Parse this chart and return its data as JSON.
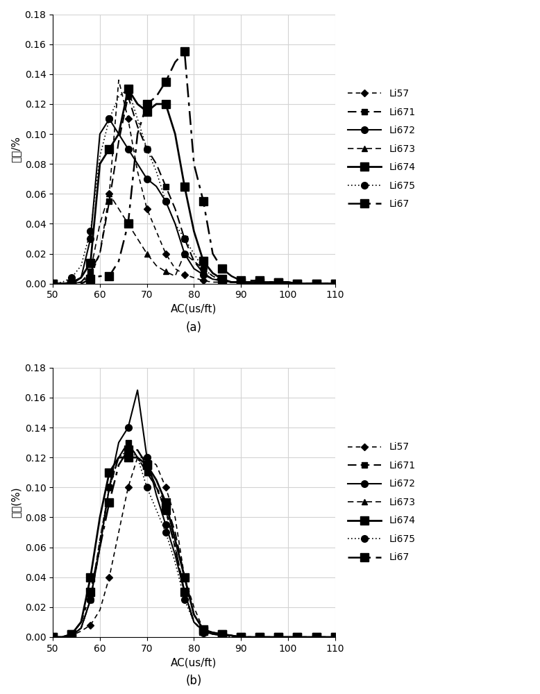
{
  "panel_a": {
    "xlabel": "AC(us/ft)",
    "ylabel_a": "频率/%",
    "ylabel_b": "频率(%)",
    "label": "(a)",
    "xlim": [
      50,
      110
    ],
    "ylim": [
      0,
      0.18
    ],
    "yticks": [
      0,
      0.02,
      0.04,
      0.06,
      0.08,
      0.1,
      0.12,
      0.14,
      0.16,
      0.18
    ],
    "xticks": [
      50,
      60,
      70,
      80,
      90,
      100,
      110
    ],
    "series": {
      "Li57": {
        "x": [
          50,
          52,
          54,
          56,
          58,
          60,
          62,
          64,
          66,
          68,
          70,
          72,
          74,
          76,
          78,
          80,
          82,
          84,
          86,
          88,
          90,
          92,
          94,
          96,
          98,
          100,
          102,
          104,
          106,
          108,
          110
        ],
        "y": [
          0,
          0,
          0,
          0.001,
          0.005,
          0.02,
          0.06,
          0.136,
          0.11,
          0.075,
          0.05,
          0.035,
          0.02,
          0.01,
          0.006,
          0.004,
          0.002,
          0.001,
          0.001,
          0.001,
          0,
          0,
          0,
          0,
          0,
          0,
          0,
          0,
          0,
          0,
          0
        ]
      },
      "Li671": {
        "x": [
          50,
          52,
          54,
          56,
          58,
          60,
          62,
          64,
          66,
          68,
          70,
          72,
          74,
          76,
          78,
          80,
          82,
          84,
          86,
          88,
          90,
          92,
          94,
          96,
          98,
          100,
          102,
          104,
          106,
          108,
          110
        ],
        "y": [
          0,
          0,
          0,
          0.001,
          0.008,
          0.02,
          0.055,
          0.095,
          0.125,
          0.105,
          0.09,
          0.08,
          0.065,
          0.05,
          0.03,
          0.015,
          0.007,
          0.003,
          0.002,
          0.001,
          0.001,
          0.001,
          0,
          0,
          0,
          0,
          0,
          0,
          0,
          0,
          0
        ]
      },
      "Li672": {
        "x": [
          50,
          52,
          54,
          56,
          58,
          60,
          62,
          64,
          66,
          68,
          70,
          72,
          74,
          76,
          78,
          80,
          82,
          84,
          86,
          88,
          90,
          92,
          94,
          96,
          98,
          100,
          102,
          104,
          106,
          108,
          110
        ],
        "y": [
          0,
          0,
          0.001,
          0.004,
          0.03,
          0.1,
          0.11,
          0.1,
          0.09,
          0.08,
          0.07,
          0.065,
          0.055,
          0.04,
          0.02,
          0.01,
          0.006,
          0.003,
          0.002,
          0.001,
          0.001,
          0,
          0,
          0,
          0,
          0,
          0,
          0,
          0,
          0,
          0
        ]
      },
      "Li673": {
        "x": [
          50,
          52,
          54,
          56,
          58,
          60,
          62,
          64,
          66,
          68,
          70,
          72,
          74,
          76,
          78,
          80,
          82,
          84,
          86,
          88,
          90,
          92,
          94,
          96,
          98,
          100,
          102,
          104,
          106,
          108,
          110
        ],
        "y": [
          0,
          0,
          0,
          0.001,
          0.008,
          0.04,
          0.06,
          0.05,
          0.04,
          0.03,
          0.02,
          0.012,
          0.008,
          0.005,
          0.02,
          0.015,
          0.01,
          0.005,
          0.002,
          0.001,
          0.001,
          0,
          0,
          0,
          0,
          0,
          0,
          0,
          0,
          0,
          0
        ]
      },
      "Li674": {
        "x": [
          50,
          52,
          54,
          56,
          58,
          60,
          62,
          64,
          66,
          68,
          70,
          72,
          74,
          76,
          78,
          80,
          82,
          84,
          86,
          88,
          90,
          92,
          94,
          96,
          98,
          100,
          102,
          104,
          106,
          108,
          110
        ],
        "y": [
          0,
          0,
          0,
          0.004,
          0.014,
          0.08,
          0.09,
          0.1,
          0.13,
          0.12,
          0.115,
          0.12,
          0.12,
          0.1,
          0.065,
          0.035,
          0.015,
          0.007,
          0.003,
          0.001,
          0.001,
          0.001,
          0.001,
          0.001,
          0.001,
          0.001,
          0,
          0,
          0,
          0,
          0
        ]
      },
      "Li675": {
        "x": [
          50,
          52,
          54,
          56,
          58,
          60,
          62,
          64,
          66,
          68,
          70,
          72,
          74,
          76,
          78,
          80,
          82,
          84,
          86,
          88,
          90,
          92,
          94,
          96,
          98,
          100,
          102,
          104,
          106,
          108,
          110
        ],
        "y": [
          0,
          0.001,
          0.004,
          0.012,
          0.035,
          0.085,
          0.11,
          0.125,
          0.13,
          0.11,
          0.09,
          0.075,
          0.055,
          0.04,
          0.03,
          0.02,
          0.01,
          0.005,
          0.002,
          0.001,
          0,
          0,
          0,
          0,
          0,
          0,
          0,
          0,
          0,
          0,
          0
        ]
      },
      "Li67": {
        "x": [
          50,
          52,
          54,
          56,
          58,
          60,
          62,
          64,
          66,
          68,
          70,
          72,
          74,
          76,
          78,
          80,
          82,
          84,
          86,
          88,
          90,
          92,
          94,
          96,
          98,
          100,
          102,
          104,
          106,
          108,
          110
        ],
        "y": [
          0,
          0,
          0,
          0,
          0.003,
          0.005,
          0.005,
          0.015,
          0.04,
          0.1,
          0.12,
          0.125,
          0.135,
          0.148,
          0.155,
          0.08,
          0.055,
          0.02,
          0.01,
          0.005,
          0.002,
          0.002,
          0.002,
          0.001,
          0.001,
          0.001,
          0,
          0,
          0,
          0,
          0
        ]
      }
    }
  },
  "panel_b": {
    "xlabel": "AC(us/ft)",
    "label": "(b)",
    "xlim": [
      50,
      110
    ],
    "ylim": [
      0,
      0.18
    ],
    "yticks": [
      0,
      0.02,
      0.04,
      0.06,
      0.08,
      0.1,
      0.12,
      0.14,
      0.16,
      0.18
    ],
    "xticks": [
      50,
      60,
      70,
      80,
      90,
      100,
      110
    ],
    "series": {
      "Li57": {
        "x": [
          50,
          52,
          54,
          56,
          58,
          60,
          62,
          64,
          66,
          68,
          70,
          72,
          74,
          76,
          78,
          80,
          82,
          84,
          86,
          88,
          90,
          92,
          94,
          96,
          98,
          100,
          102,
          104,
          106,
          108,
          110
        ],
        "y": [
          0,
          0,
          0.001,
          0.004,
          0.008,
          0.018,
          0.04,
          0.07,
          0.1,
          0.12,
          0.12,
          0.115,
          0.1,
          0.08,
          0.04,
          0.02,
          0.005,
          0.002,
          0.002,
          0.001,
          0,
          0,
          0,
          0,
          0,
          0,
          0,
          0,
          0,
          0,
          0
        ]
      },
      "Li671": {
        "x": [
          50,
          52,
          54,
          56,
          58,
          60,
          62,
          64,
          66,
          68,
          70,
          72,
          74,
          76,
          78,
          80,
          82,
          84,
          86,
          88,
          90,
          92,
          94,
          96,
          98,
          100,
          102,
          104,
          106,
          108,
          110
        ],
        "y": [
          0,
          0,
          0.001,
          0.006,
          0.025,
          0.06,
          0.1,
          0.12,
          0.13,
          0.12,
          0.11,
          0.1,
          0.09,
          0.07,
          0.04,
          0.015,
          0.005,
          0.003,
          0.002,
          0.001,
          0,
          0,
          0,
          0,
          0,
          0,
          0,
          0,
          0,
          0,
          0
        ]
      },
      "Li672": {
        "x": [
          50,
          52,
          54,
          56,
          58,
          60,
          62,
          64,
          66,
          68,
          70,
          72,
          74,
          76,
          78,
          80,
          82,
          84,
          86,
          88,
          90,
          92,
          94,
          96,
          98,
          100,
          102,
          104,
          106,
          108,
          110
        ],
        "y": [
          0,
          0,
          0.001,
          0.006,
          0.025,
          0.06,
          0.1,
          0.13,
          0.14,
          0.165,
          0.12,
          0.095,
          0.075,
          0.055,
          0.03,
          0.01,
          0.004,
          0.002,
          0.001,
          0.001,
          0,
          0,
          0,
          0,
          0,
          0,
          0,
          0,
          0,
          0,
          0
        ]
      },
      "Li673": {
        "x": [
          50,
          52,
          54,
          56,
          58,
          60,
          62,
          64,
          66,
          68,
          70,
          72,
          74,
          76,
          78,
          80,
          82,
          84,
          86,
          88,
          90,
          92,
          94,
          96,
          98,
          100,
          102,
          104,
          106,
          108,
          110
        ],
        "y": [
          0,
          0,
          0.001,
          0.006,
          0.025,
          0.065,
          0.1,
          0.12,
          0.13,
          0.12,
          0.11,
          0.1,
          0.085,
          0.06,
          0.03,
          0.01,
          0.004,
          0.002,
          0.001,
          0.001,
          0,
          0,
          0,
          0,
          0,
          0,
          0,
          0,
          0,
          0,
          0
        ]
      },
      "Li674": {
        "x": [
          50,
          52,
          54,
          56,
          58,
          60,
          62,
          64,
          66,
          68,
          70,
          72,
          74,
          76,
          78,
          80,
          82,
          84,
          86,
          88,
          90,
          92,
          94,
          96,
          98,
          100,
          102,
          104,
          106,
          108,
          110
        ],
        "y": [
          0,
          0,
          0.002,
          0.01,
          0.04,
          0.08,
          0.11,
          0.12,
          0.12,
          0.12,
          0.115,
          0.105,
          0.09,
          0.065,
          0.04,
          0.015,
          0.005,
          0.003,
          0.002,
          0.001,
          0,
          0,
          0,
          0,
          0,
          0,
          0,
          0,
          0,
          0,
          0
        ]
      },
      "Li675": {
        "x": [
          50,
          52,
          54,
          56,
          58,
          60,
          62,
          64,
          66,
          68,
          70,
          72,
          74,
          76,
          78,
          80,
          82,
          84,
          86,
          88,
          90,
          92,
          94,
          96,
          98,
          100,
          102,
          104,
          106,
          108,
          110
        ],
        "y": [
          0,
          0,
          0.001,
          0.006,
          0.025,
          0.065,
          0.1,
          0.12,
          0.125,
          0.12,
          0.1,
          0.085,
          0.07,
          0.05,
          0.025,
          0.01,
          0.003,
          0.002,
          0.001,
          0,
          0,
          0,
          0,
          0,
          0,
          0,
          0,
          0,
          0,
          0,
          0
        ]
      },
      "Li67": {
        "x": [
          50,
          52,
          54,
          56,
          58,
          60,
          62,
          64,
          66,
          68,
          70,
          72,
          74,
          76,
          78,
          80,
          82,
          84,
          86,
          88,
          90,
          92,
          94,
          96,
          98,
          100,
          102,
          104,
          106,
          108,
          110
        ],
        "y": [
          0,
          0,
          0.002,
          0.01,
          0.03,
          0.06,
          0.09,
          0.115,
          0.125,
          0.125,
          0.115,
          0.1,
          0.085,
          0.06,
          0.03,
          0.01,
          0.004,
          0.003,
          0.002,
          0.001,
          0,
          0,
          0,
          0,
          0,
          0,
          0,
          0,
          0,
          0,
          0
        ]
      }
    }
  }
}
